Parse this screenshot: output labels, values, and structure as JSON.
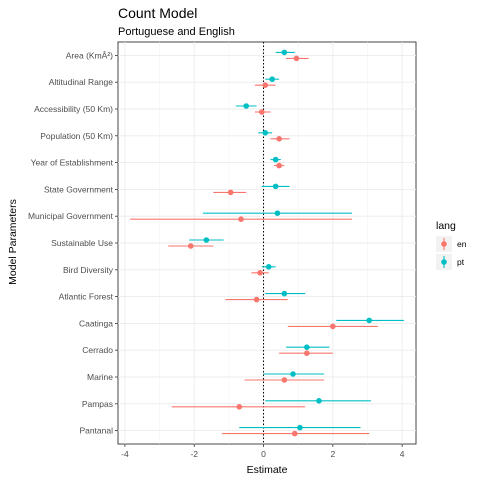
{
  "chart_data": {
    "type": "scatter",
    "title": "Count Model",
    "subtitle": "Portuguese and English",
    "xlabel": "Estimate",
    "ylabel": "Model Parameters",
    "xlim": [
      -4.2,
      4.4
    ],
    "x_ticks": [
      -4,
      -2,
      0,
      2,
      4
    ],
    "reference_line_x": 0,
    "grid": true,
    "legend_placement": "right",
    "legend_title": "lang",
    "categories": [
      "Area (KmÂ²)",
      "Altitudinal Range",
      "Accessibility (50 Km)",
      "Population (50 Km)",
      "Year of Establishment",
      "State Government",
      "Municipal Government",
      "Sustainable Use",
      "Bird Diversity",
      "Atlantic Forest",
      "Caatinga",
      "Cerrado",
      "Marine",
      "Pampas",
      "Pantanal"
    ],
    "series": [
      {
        "name": "en",
        "color": "#F8766D",
        "estimates": [
          0.95,
          0.05,
          -0.05,
          0.45,
          0.45,
          -0.95,
          -0.65,
          -2.1,
          -0.1,
          -0.2,
          2.0,
          1.25,
          0.6,
          -0.7,
          0.9
        ],
        "lower": [
          0.65,
          -0.25,
          -0.25,
          0.2,
          0.3,
          -1.45,
          -3.85,
          -2.75,
          -0.35,
          -1.1,
          0.7,
          0.45,
          -0.55,
          -2.65,
          -1.2
        ],
        "upper": [
          1.3,
          0.35,
          0.2,
          0.75,
          0.6,
          -0.5,
          2.55,
          -1.45,
          0.15,
          0.7,
          3.3,
          2.0,
          1.75,
          1.2,
          3.05
        ]
      },
      {
        "name": "pt",
        "color": "#00BFC4",
        "estimates": [
          0.6,
          0.25,
          -0.5,
          0.05,
          0.35,
          0.35,
          0.4,
          -1.65,
          0.15,
          0.6,
          3.05,
          1.25,
          0.85,
          1.6,
          1.05
        ],
        "lower": [
          0.35,
          0.05,
          -0.8,
          -0.15,
          0.2,
          -0.05,
          -1.75,
          -2.15,
          -0.05,
          0.05,
          2.1,
          0.65,
          0.0,
          0.05,
          -0.7
        ],
        "upper": [
          0.9,
          0.45,
          -0.2,
          0.25,
          0.5,
          0.75,
          2.55,
          -1.15,
          0.35,
          1.2,
          4.05,
          1.9,
          1.75,
          3.1,
          2.8
        ]
      }
    ]
  }
}
